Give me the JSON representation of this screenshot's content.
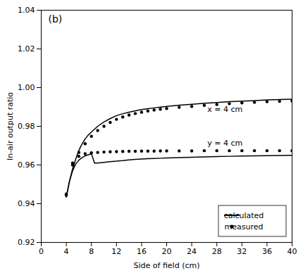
{
  "chart_data": {
    "type": "line",
    "title": "(b)",
    "x_label": "Side of field (cm)",
    "y_label": "In-air output ratio",
    "xlim": [
      0,
      40
    ],
    "ylim": [
      0.92,
      1.04
    ],
    "xticks": [
      0,
      4,
      8,
      12,
      16,
      20,
      24,
      28,
      32,
      36,
      40
    ],
    "yticks": [
      0.92,
      0.94,
      0.96,
      0.98,
      {
        "value": 1.0,
        "label": "1.00"
      },
      1.02,
      1.04
    ],
    "grid": false,
    "legend": "lower right",
    "series": [
      {
        "name": "calculated",
        "type": "line",
        "line_style": "solid",
        "color": "#000000",
        "x": [
          4,
          4.5,
          5,
          5.5,
          6,
          6.5,
          7,
          7.5,
          8,
          9,
          10,
          11,
          12,
          13,
          14,
          15,
          16,
          17,
          18,
          19,
          20,
          22,
          24,
          26,
          28,
          30,
          32,
          34,
          36,
          38,
          40
        ],
        "values": [
          0.9435,
          0.9515,
          0.958,
          0.963,
          0.9675,
          0.9708,
          0.9735,
          0.9755,
          0.977,
          0.98,
          0.9822,
          0.984,
          0.9855,
          0.9865,
          0.9873,
          0.988,
          0.9886,
          0.9891,
          0.9895,
          0.9899,
          0.9903,
          0.9909,
          0.9914,
          0.9919,
          0.9923,
          0.9927,
          0.993,
          0.9933,
          0.9936,
          0.9938,
          0.994
        ]
      },
      {
        "name": "measured",
        "type": "scatter",
        "marker": "o",
        "color": "#000000",
        "x": [
          4,
          5,
          6,
          7,
          8,
          9,
          10,
          11,
          12,
          13,
          14,
          15,
          16,
          17,
          18,
          19,
          20,
          22,
          24,
          26,
          28,
          30,
          32,
          34,
          36,
          38,
          40
        ],
        "values": [
          0.9445,
          0.96,
          0.9665,
          0.971,
          0.9748,
          0.9778,
          0.98,
          0.982,
          0.9836,
          0.9848,
          0.9858,
          0.9866,
          0.9873,
          0.9879,
          0.9884,
          0.9888,
          0.9892,
          0.9898,
          0.9903,
          0.9908,
          0.9913,
          0.9917,
          0.9921,
          0.9924,
          0.9927,
          0.9929,
          0.9931
        ]
      },
      {
        "name": "calculated",
        "type": "line",
        "line_style": "solid",
        "color": "#000000",
        "x": [
          4,
          4.5,
          5,
          5.5,
          6,
          6.5,
          7,
          7.5,
          8,
          8.5,
          9,
          9.5,
          10,
          11,
          12,
          12.5,
          13,
          14,
          15,
          16,
          17,
          18,
          19,
          20,
          22,
          24,
          26,
          28,
          30,
          32,
          34,
          36,
          38,
          40
        ],
        "values": [
          0.9435,
          0.9515,
          0.957,
          0.9605,
          0.9625,
          0.9638,
          0.9647,
          0.9653,
          0.9658,
          0.961,
          0.961,
          0.9612,
          0.9614,
          0.9617,
          0.962,
          0.9622,
          0.9623,
          0.9626,
          0.9629,
          0.9631,
          0.9633,
          0.9634,
          0.9635,
          0.9636,
          0.9638,
          0.964,
          0.9642,
          0.9644,
          0.9645,
          0.9646,
          0.9647,
          0.9648,
          0.9649,
          0.965
        ]
      },
      {
        "name": "measured",
        "type": "scatter",
        "marker": "o",
        "color": "#000000",
        "x": [
          4,
          5,
          6,
          7,
          8,
          9,
          10,
          11,
          12,
          13,
          14,
          15,
          16,
          17,
          18,
          19,
          20,
          22,
          24,
          26,
          28,
          30,
          32,
          34,
          36,
          38,
          40
        ],
        "values": [
          0.945,
          0.961,
          0.9645,
          0.9658,
          0.9663,
          0.9665,
          0.9667,
          0.9668,
          0.9669,
          0.967,
          0.9671,
          0.9671,
          0.9672,
          0.9672,
          0.9672,
          0.9673,
          0.9673,
          0.9673,
          0.9673,
          0.9674,
          0.9674,
          0.9674,
          0.9674,
          0.9674,
          0.9674,
          0.9674,
          0.9674
        ]
      }
    ],
    "annotations": [
      {
        "text": "x = 4 cm",
        "x": 26.5,
        "y": 0.9888
      },
      {
        "text": "y = 4 cm",
        "x": 26.5,
        "y": 0.9712
      }
    ]
  }
}
